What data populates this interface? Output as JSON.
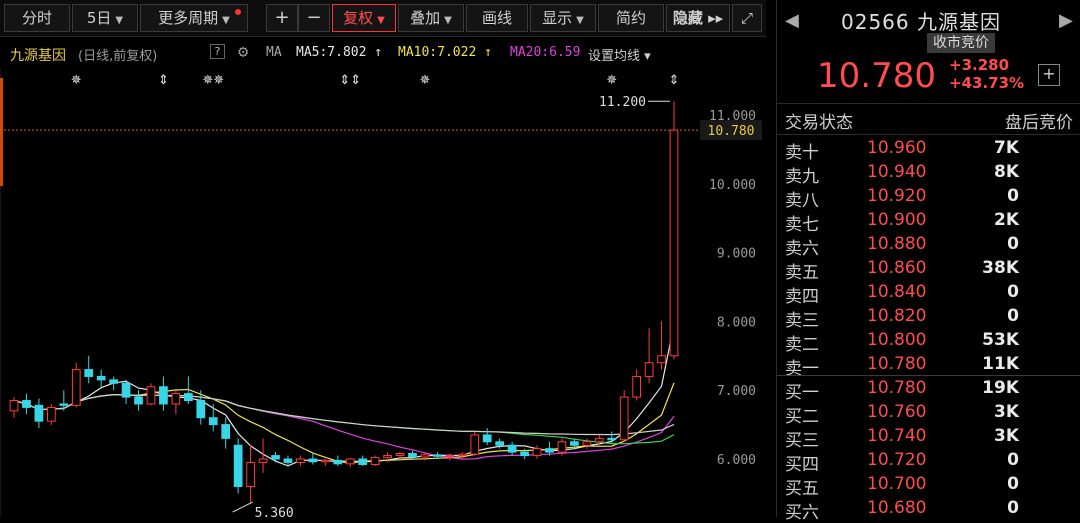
{
  "toolbar": {
    "items": [
      {
        "label": "分时"
      },
      {
        "label": "5日",
        "caret": "▼"
      },
      {
        "label": "更多周期",
        "caret": "▼"
      },
      {
        "label": "+"
      },
      {
        "label": "−"
      },
      {
        "label": "复权",
        "caret": "▼"
      },
      {
        "label": "叠加",
        "caret": "▼"
      },
      {
        "label": "画线"
      },
      {
        "label": "显示",
        "caret": "▼"
      },
      {
        "label": "简约"
      },
      {
        "label": "隐藏 ▸▸"
      },
      {
        "label": "⤢"
      }
    ]
  },
  "ma_bar": {
    "stock_name": "九源基因",
    "period": "(日线,前复权)",
    "help": "?",
    "ma_label": "MA",
    "ma5": "MA5:7.802 ↑",
    "ma10": "MA10:7.022 ↑",
    "ma20": "MA20:6.59",
    "settings": "设置均线 ▾"
  },
  "chart_data": {
    "type": "candlestick",
    "y_axis": {
      "ticks": [
        "11.000",
        "10.000",
        "9.000",
        "8.000",
        "7.000",
        "6.000"
      ],
      "ylim": [
        5.2,
        11.4
      ]
    },
    "current_price_label": "10.780",
    "high_label": "11.200",
    "low_label": "5.360",
    "colors": {
      "up": "#ff3b3b",
      "down": "#36d6e6",
      "ma5": "#e8e8e8",
      "ma10": "#f2e34a",
      "ma20": "#e040e0",
      "ma60": "#3cd24a",
      "ma120": "#cfcfcf"
    },
    "markers": [
      "✵",
      "⇕",
      "✵✵",
      "⇕⇕",
      "✵",
      "✵",
      "⇕"
    ],
    "candles": [
      {
        "o": 6.7,
        "h": 6.9,
        "l": 6.6,
        "c": 6.85
      },
      {
        "o": 6.85,
        "h": 6.95,
        "l": 6.65,
        "c": 6.75
      },
      {
        "o": 6.78,
        "h": 6.88,
        "l": 6.45,
        "c": 6.55
      },
      {
        "o": 6.55,
        "h": 6.8,
        "l": 6.5,
        "c": 6.75
      },
      {
        "o": 6.8,
        "h": 7.0,
        "l": 6.7,
        "c": 6.78
      },
      {
        "o": 6.78,
        "h": 7.4,
        "l": 6.75,
        "c": 7.3
      },
      {
        "o": 7.3,
        "h": 7.5,
        "l": 7.1,
        "c": 7.2
      },
      {
        "o": 7.2,
        "h": 7.3,
        "l": 7.05,
        "c": 7.15
      },
      {
        "o": 7.15,
        "h": 7.2,
        "l": 7.0,
        "c": 7.1
      },
      {
        "o": 7.1,
        "h": 7.15,
        "l": 6.8,
        "c": 6.9
      },
      {
        "o": 6.9,
        "h": 7.0,
        "l": 6.7,
        "c": 6.8
      },
      {
        "o": 6.8,
        "h": 7.1,
        "l": 6.78,
        "c": 7.05
      },
      {
        "o": 7.05,
        "h": 7.2,
        "l": 6.7,
        "c": 6.8
      },
      {
        "o": 6.8,
        "h": 7.0,
        "l": 6.65,
        "c": 6.95
      },
      {
        "o": 6.95,
        "h": 7.2,
        "l": 6.8,
        "c": 6.85
      },
      {
        "o": 6.85,
        "h": 7.0,
        "l": 6.5,
        "c": 6.6
      },
      {
        "o": 6.6,
        "h": 6.8,
        "l": 6.4,
        "c": 6.5
      },
      {
        "o": 6.5,
        "h": 6.6,
        "l": 6.15,
        "c": 6.3
      },
      {
        "o": 6.2,
        "h": 6.3,
        "l": 5.5,
        "c": 5.6
      },
      {
        "o": 5.6,
        "h": 6.2,
        "l": 5.36,
        "c": 5.95
      },
      {
        "o": 5.95,
        "h": 6.3,
        "l": 5.8,
        "c": 6.0
      },
      {
        "o": 6.05,
        "h": 6.1,
        "l": 5.95,
        "c": 6.0
      },
      {
        "o": 6.0,
        "h": 6.05,
        "l": 5.9,
        "c": 5.95
      },
      {
        "o": 5.95,
        "h": 6.05,
        "l": 5.9,
        "c": 6.0
      },
      {
        "o": 6.0,
        "h": 6.1,
        "l": 5.92,
        "c": 5.96
      },
      {
        "o": 5.96,
        "h": 6.0,
        "l": 5.9,
        "c": 5.98
      },
      {
        "o": 5.98,
        "h": 6.05,
        "l": 5.9,
        "c": 5.93
      },
      {
        "o": 5.93,
        "h": 6.02,
        "l": 5.88,
        "c": 6.0
      },
      {
        "o": 6.0,
        "h": 6.05,
        "l": 5.9,
        "c": 5.92
      },
      {
        "o": 5.92,
        "h": 6.05,
        "l": 5.9,
        "c": 6.02
      },
      {
        "o": 6.02,
        "h": 6.1,
        "l": 5.95,
        "c": 6.05
      },
      {
        "o": 6.05,
        "h": 6.1,
        "l": 6.0,
        "c": 6.08
      },
      {
        "o": 6.08,
        "h": 6.12,
        "l": 6.0,
        "c": 6.03
      },
      {
        "o": 6.03,
        "h": 6.1,
        "l": 5.98,
        "c": 6.06
      },
      {
        "o": 6.06,
        "h": 6.1,
        "l": 6.0,
        "c": 6.04
      },
      {
        "o": 6.04,
        "h": 6.08,
        "l": 5.98,
        "c": 6.05
      },
      {
        "o": 6.05,
        "h": 6.1,
        "l": 6.0,
        "c": 6.07
      },
      {
        "o": 6.07,
        "h": 6.4,
        "l": 6.05,
        "c": 6.35
      },
      {
        "o": 6.35,
        "h": 6.45,
        "l": 6.2,
        "c": 6.25
      },
      {
        "o": 6.25,
        "h": 6.3,
        "l": 6.15,
        "c": 6.2
      },
      {
        "o": 6.2,
        "h": 6.25,
        "l": 6.05,
        "c": 6.1
      },
      {
        "o": 6.1,
        "h": 6.15,
        "l": 6.0,
        "c": 6.05
      },
      {
        "o": 6.05,
        "h": 6.2,
        "l": 6.0,
        "c": 6.15
      },
      {
        "o": 6.15,
        "h": 6.25,
        "l": 6.05,
        "c": 6.1
      },
      {
        "o": 6.1,
        "h": 6.3,
        "l": 6.05,
        "c": 6.25
      },
      {
        "o": 6.25,
        "h": 6.3,
        "l": 6.15,
        "c": 6.2
      },
      {
        "o": 6.2,
        "h": 6.3,
        "l": 6.15,
        "c": 6.25
      },
      {
        "o": 6.25,
        "h": 6.35,
        "l": 6.2,
        "c": 6.3
      },
      {
        "o": 6.3,
        "h": 6.4,
        "l": 6.22,
        "c": 6.28
      },
      {
        "o": 6.28,
        "h": 7.0,
        "l": 6.25,
        "c": 6.9
      },
      {
        "o": 6.9,
        "h": 7.3,
        "l": 6.85,
        "c": 7.2
      },
      {
        "o": 7.2,
        "h": 7.9,
        "l": 7.1,
        "c": 7.4
      },
      {
        "o": 7.4,
        "h": 8.0,
        "l": 7.3,
        "c": 7.5
      },
      {
        "o": 7.5,
        "h": 11.2,
        "l": 7.45,
        "c": 10.78
      }
    ]
  },
  "right_panel": {
    "prev": "◀",
    "next": "▶",
    "title": "02566 九源基因",
    "tag": "收市竞价",
    "price": "10.780",
    "change": "+3.280",
    "change_pct": "+43.73%",
    "plus": "+",
    "status_label": "交易状态",
    "status_value": "盘后竞价",
    "asks": [
      {
        "label": "卖十",
        "price": "10.960",
        "vol": "7K"
      },
      {
        "label": "卖九",
        "price": "10.940",
        "vol": "8K"
      },
      {
        "label": "卖八",
        "price": "10.920",
        "vol": "0"
      },
      {
        "label": "卖七",
        "price": "10.900",
        "vol": "2K"
      },
      {
        "label": "卖六",
        "price": "10.880",
        "vol": "0"
      },
      {
        "label": "卖五",
        "price": "10.860",
        "vol": "38K"
      },
      {
        "label": "卖四",
        "price": "10.840",
        "vol": "0"
      },
      {
        "label": "卖三",
        "price": "10.820",
        "vol": "0"
      },
      {
        "label": "卖二",
        "price": "10.800",
        "vol": "53K"
      },
      {
        "label": "卖一",
        "price": "10.780",
        "vol": "11K"
      }
    ],
    "bids": [
      {
        "label": "买一",
        "price": "10.780",
        "vol": "19K"
      },
      {
        "label": "买二",
        "price": "10.760",
        "vol": "3K"
      },
      {
        "label": "买三",
        "price": "10.740",
        "vol": "3K"
      },
      {
        "label": "买四",
        "price": "10.720",
        "vol": "0"
      },
      {
        "label": "买五",
        "price": "10.700",
        "vol": "0"
      },
      {
        "label": "买六",
        "price": "10.680",
        "vol": "0"
      }
    ]
  }
}
